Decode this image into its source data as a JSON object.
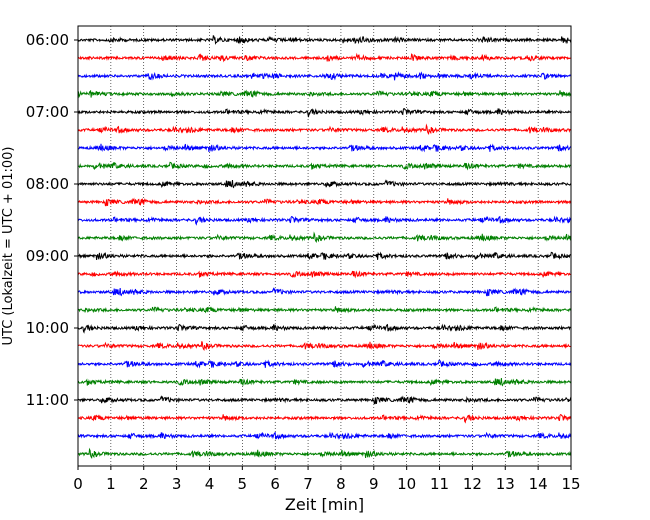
{
  "chart_data": {
    "type": "line",
    "title": "",
    "xlabel": "Zeit  [min]",
    "ylabel": "UTC (Lokalzeit = UTC + 01:00)",
    "xlim": [
      0,
      15
    ],
    "x_ticks": [
      "0",
      "1",
      "2",
      "3",
      "4",
      "5",
      "6",
      "7",
      "8",
      "9",
      "10",
      "11",
      "12",
      "13",
      "14",
      "15"
    ],
    "y_ticks": [
      "06:00",
      "07:00",
      "08:00",
      "09:00",
      "10:00",
      "11:00"
    ],
    "grid": "vertical dotted lines at each minute",
    "row_interval_minutes": 15,
    "rows_per_hour": 4,
    "color_cycle": [
      "#000000",
      "#ff0000",
      "#0000ff",
      "#008000"
    ],
    "series": [
      {
        "start": "06:00"
      },
      {
        "start": "06:15"
      },
      {
        "start": "06:30"
      },
      {
        "start": "06:45"
      },
      {
        "start": "07:00"
      },
      {
        "start": "07:15"
      },
      {
        "start": "07:30"
      },
      {
        "start": "07:45"
      },
      {
        "start": "08:00"
      },
      {
        "start": "08:15"
      },
      {
        "start": "08:30"
      },
      {
        "start": "08:45"
      },
      {
        "start": "09:00"
      },
      {
        "start": "09:15"
      },
      {
        "start": "09:30"
      },
      {
        "start": "09:45"
      },
      {
        "start": "10:00"
      },
      {
        "start": "10:15"
      },
      {
        "start": "10:30"
      },
      {
        "start": "10:45"
      },
      {
        "start": "11:00"
      },
      {
        "start": "11:15"
      },
      {
        "start": "11:30"
      },
      {
        "start": "11:45"
      }
    ]
  }
}
